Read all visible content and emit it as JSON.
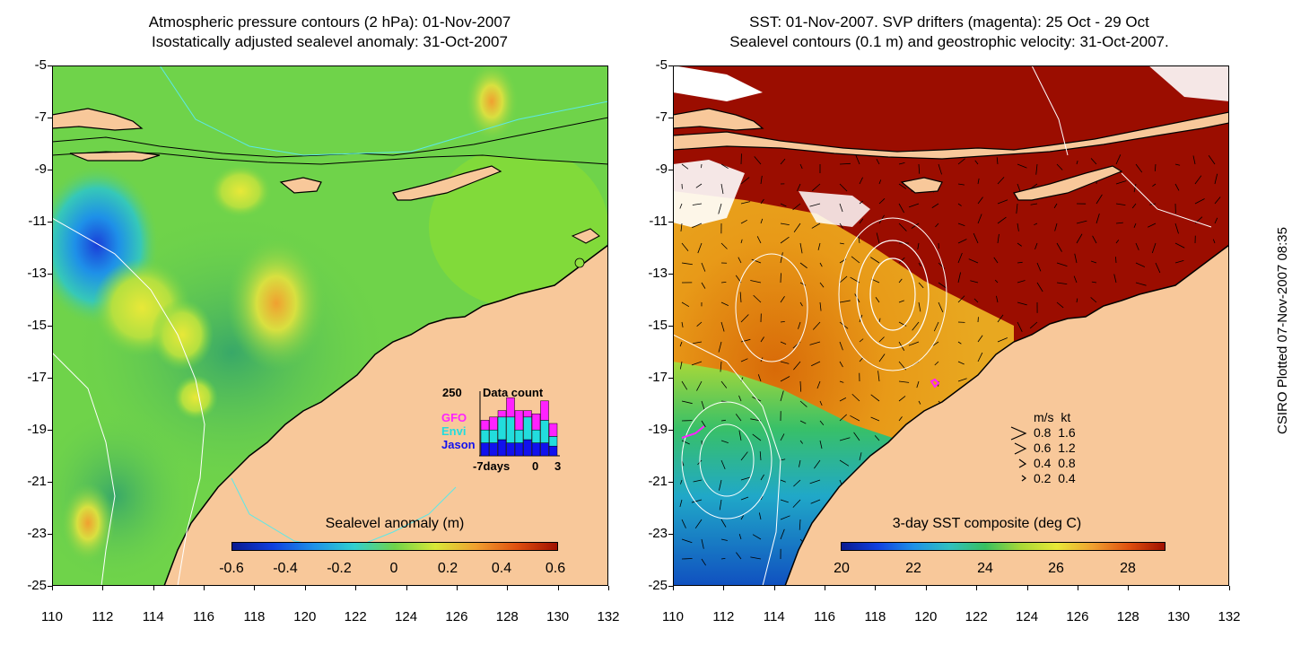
{
  "left_panel": {
    "title_line1": "Atmospheric pressure contours (2 hPa): 01-Nov-2007",
    "title_line2": "Isostatically adjusted sealevel anomaly: 31-Oct-2007",
    "colorbar_label": "Sealevel anomaly (m)",
    "colorbar_ticks": [
      "-0.6",
      "-0.4",
      "-0.2",
      "0",
      "0.2",
      "0.4",
      "0.6"
    ],
    "data_count": {
      "max_label": "250",
      "title": "Data count",
      "x_ticks": [
        "-7days",
        "0",
        "3"
      ],
      "legend": [
        {
          "label": "GFO",
          "color": "#ff22ff"
        },
        {
          "label": "Envi",
          "color": "#22dddd"
        },
        {
          "label": "Jason",
          "color": "#1111ee"
        }
      ],
      "bars": [
        {
          "jason": 0.2,
          "envi": 0.2,
          "gfo": 0.15
        },
        {
          "jason": 0.2,
          "envi": 0.2,
          "gfo": 0.2
        },
        {
          "jason": 0.25,
          "envi": 0.35,
          "gfo": 0.1
        },
        {
          "jason": 0.2,
          "envi": 0.4,
          "gfo": 0.3
        },
        {
          "jason": 0.2,
          "envi": 0.2,
          "gfo": 0.3
        },
        {
          "jason": 0.25,
          "envi": 0.35,
          "gfo": 0.1
        },
        {
          "jason": 0.2,
          "envi": 0.2,
          "gfo": 0.25
        },
        {
          "jason": 0.2,
          "envi": 0.35,
          "gfo": 0.3
        },
        {
          "jason": 0.15,
          "envi": 0.15,
          "gfo": 0.2
        }
      ]
    }
  },
  "right_panel": {
    "title_line1": "SST: 01-Nov-2007. SVP drifters (magenta): 25 Oct - 29 Oct",
    "title_line2": "Sealevel contours (0.1 m) and geostrophic velocity: 31-Oct-2007.",
    "colorbar_label": "3-day SST composite (deg C)",
    "colorbar_ticks": [
      "20",
      "22",
      "24",
      "26",
      "28"
    ],
    "velocity_legend": {
      "header": "m/s  kt",
      "rows": [
        "0.8  1.6",
        "0.6  1.2",
        "0.4  0.8",
        "0.2  0.4"
      ]
    }
  },
  "axes": {
    "y_ticks": [
      "-5",
      "-7",
      "-9",
      "-11",
      "-13",
      "-15",
      "-17",
      "-19",
      "-21",
      "-23",
      "-25"
    ],
    "x_ticks": [
      "110",
      "112",
      "114",
      "116",
      "118",
      "120",
      "122",
      "124",
      "126",
      "128",
      "130",
      "132"
    ]
  },
  "credit": "CSIRO Plotted 07-Nov-2007 08:35",
  "colors": {
    "land": "#f8c89a",
    "sla_background": "#6fd34a",
    "sst_warm": "#9b0d00",
    "sst_mid": "#e08a10",
    "sst_cool": "#2a9ed8"
  }
}
